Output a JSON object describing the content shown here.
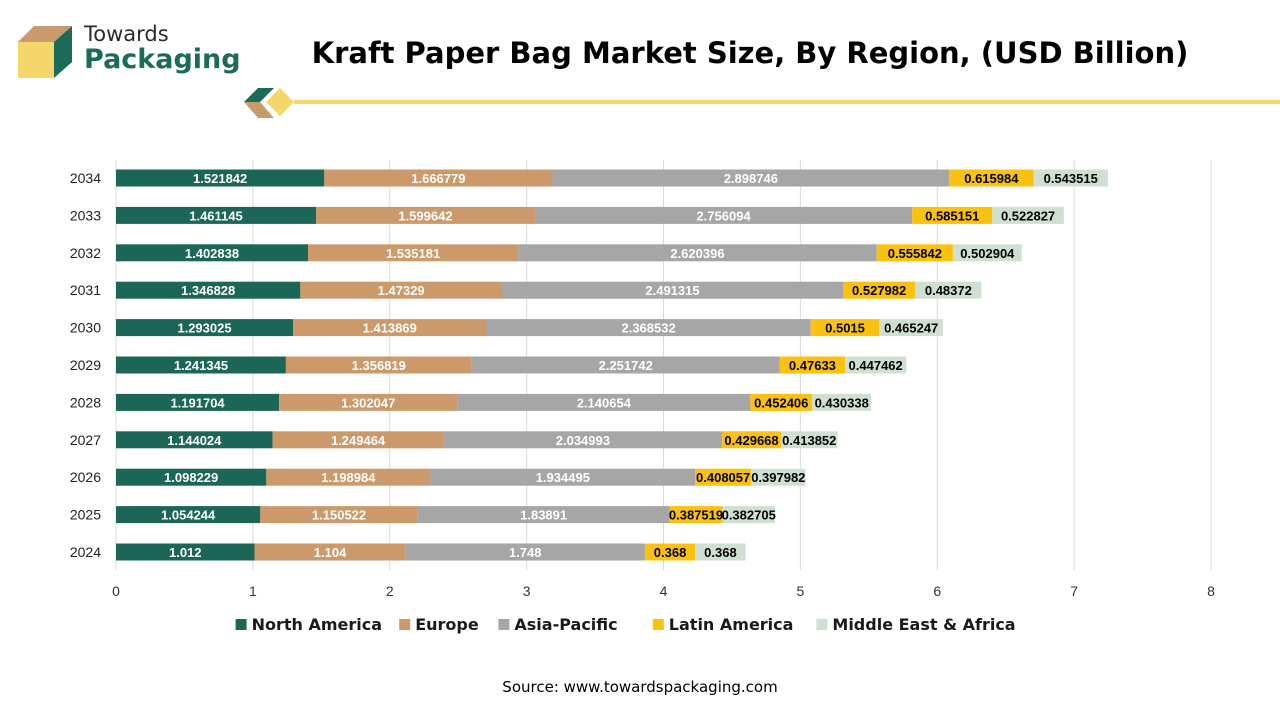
{
  "brand": {
    "line1": "Towards",
    "line2": "Packaging"
  },
  "title": "Kraft Paper Bag Market Size, By Region, (USD Billion)",
  "source": "Source: www.towardspackaging.com",
  "colors": {
    "accent_yellow": "#f5d66b",
    "brand_green": "#1a6b58",
    "brand_tan": "#c99b6c"
  },
  "chart_data": {
    "type": "bar",
    "orientation": "horizontal",
    "stacked": true,
    "categories": [
      "2024",
      "2025",
      "2026",
      "2027",
      "2028",
      "2029",
      "2030",
      "2031",
      "2032",
      "2033",
      "2034"
    ],
    "series": [
      {
        "name": "North America",
        "color": "#1b6656",
        "label_color": "#ffffff",
        "values": [
          1.012,
          1.054244,
          1.098229,
          1.144024,
          1.191704,
          1.241345,
          1.293025,
          1.346828,
          1.402838,
          1.461145,
          1.521842
        ],
        "labels": [
          "1.012",
          "1.054244",
          "1.098229",
          "1.144024",
          "1.191704",
          "1.241345",
          "1.293025",
          "1.346828",
          "1.402838",
          "1.461145",
          "1.521842"
        ]
      },
      {
        "name": "Europe",
        "color": "#cc9a6a",
        "label_color": "#ffffff",
        "values": [
          1.104,
          1.150522,
          1.198984,
          1.249464,
          1.302047,
          1.356819,
          1.413869,
          1.47329,
          1.535181,
          1.599642,
          1.666779
        ],
        "labels": [
          "1.104",
          "1.150522",
          "1.198984",
          "1.249464",
          "1.302047",
          "1.356819",
          "1.413869",
          "1.47329",
          "1.535181",
          "1.599642",
          "1.666779"
        ]
      },
      {
        "name": "Asia-Pacific",
        "color": "#a6a6a6",
        "label_color": "#ffffff",
        "values": [
          1.748,
          1.83891,
          1.934495,
          2.034993,
          2.140654,
          2.251742,
          2.368532,
          2.491315,
          2.620396,
          2.756094,
          2.898746
        ],
        "labels": [
          "1.748",
          "1.83891",
          "1.934495",
          "2.034993",
          "2.140654",
          "2.251742",
          "2.368532",
          "2.491315",
          "2.620396",
          "2.756094",
          "2.898746"
        ]
      },
      {
        "name": "Latin America",
        "color": "#fbc10f",
        "label_color": "#000000",
        "values": [
          0.368,
          0.387519,
          0.408057,
          0.429668,
          0.452406,
          0.47633,
          0.5015,
          0.527982,
          0.555842,
          0.585151,
          0.615984
        ],
        "labels": [
          "0.368",
          "0.387519",
          "0.408057",
          "0.429668",
          "0.452406",
          "0.47633",
          "0.5015",
          "0.527982",
          "0.555842",
          "0.585151",
          "0.615984"
        ]
      },
      {
        "name": "Middle East & Africa",
        "color": "#cfe0d2",
        "label_color": "#000000",
        "values": [
          0.368,
          0.382705,
          0.397982,
          0.413852,
          0.430338,
          0.447462,
          0.465247,
          0.48372,
          0.502904,
          0.522827,
          0.543515
        ],
        "labels": [
          "0.368",
          "0.382705",
          "0.397982",
          "0.413852",
          "0.430338",
          "0.447462",
          "0.465247",
          "0.48372",
          "0.502904",
          "0.522827",
          "0.543515"
        ]
      }
    ],
    "xlim": [
      0,
      8
    ],
    "xticks": [
      "0",
      "1",
      "2",
      "3",
      "4",
      "5",
      "6",
      "7",
      "8"
    ],
    "grid": true,
    "legend_position": "bottom"
  }
}
